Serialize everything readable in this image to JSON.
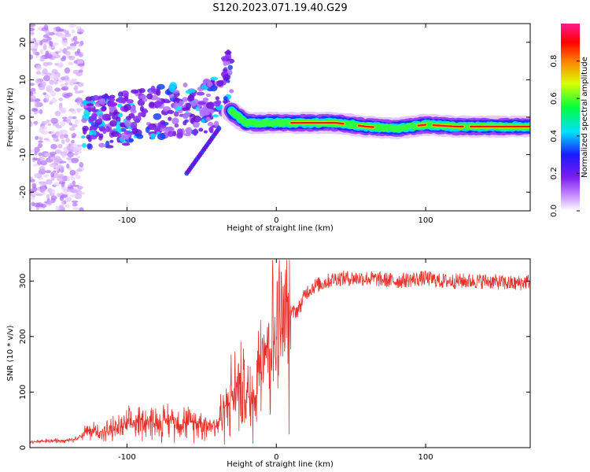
{
  "title": "S120.2023.071.19.40.G29",
  "chart_data": [
    {
      "type": "heatmap",
      "title": "S120.2023.071.19.40.G29",
      "xlabel": "Height of straight line (km)",
      "ylabel": "Frequency (Hz)",
      "xlim": [
        -165,
        170
      ],
      "ylim": [
        -25,
        25
      ],
      "xticks": [
        -100,
        0,
        100
      ],
      "yticks": [
        -20,
        -10,
        0,
        10,
        20
      ],
      "colorbar": {
        "label": "Normalized spectral amplitude",
        "range": [
          0,
          1
        ],
        "ticks": [
          0.0,
          0.2,
          0.4,
          0.6,
          0.8
        ],
        "colormap": "rainbow (white-purple-blue-cyan-green-yellow-red-magenta)"
      },
      "ridge": {
        "description": "dominant spectral ridge approx. -2 Hz for heights > -30 km, scattered noise below",
        "x": [
          -30,
          -20,
          0,
          20,
          40,
          60,
          80,
          100,
          120,
          140,
          170
        ],
        "y": [
          1.5,
          -1.5,
          -1.5,
          -1.5,
          -1.5,
          -2.5,
          -3,
          -2,
          -2.5,
          -2.5,
          -2.5
        ]
      },
      "grid": false
    },
    {
      "type": "line",
      "xlabel": "Height of straight line (km)",
      "ylabel": "SNR (10 * v/v)",
      "xlim": [
        -165,
        170
      ],
      "ylim": [
        0,
        340
      ],
      "xticks": [
        -100,
        0,
        100
      ],
      "yticks": [
        0,
        100,
        200,
        300
      ],
      "color": "#e8302a",
      "x": [
        -165,
        -150,
        -135,
        -125,
        -115,
        -100,
        -90,
        -80,
        -70,
        -60,
        -50,
        -40,
        -35,
        -30,
        -25,
        -20,
        -15,
        -12,
        -10,
        -5,
        0,
        5,
        10,
        15,
        20,
        25,
        30,
        40,
        60,
        80,
        100,
        110,
        120,
        140,
        160,
        170
      ],
      "y": [
        10,
        12,
        15,
        30,
        28,
        40,
        50,
        45,
        50,
        45,
        45,
        40,
        70,
        90,
        110,
        95,
        80,
        150,
        200,
        180,
        200,
        220,
        240,
        250,
        280,
        290,
        295,
        305,
        305,
        300,
        305,
        300,
        300,
        300,
        295,
        300
      ],
      "grid": false
    }
  ]
}
